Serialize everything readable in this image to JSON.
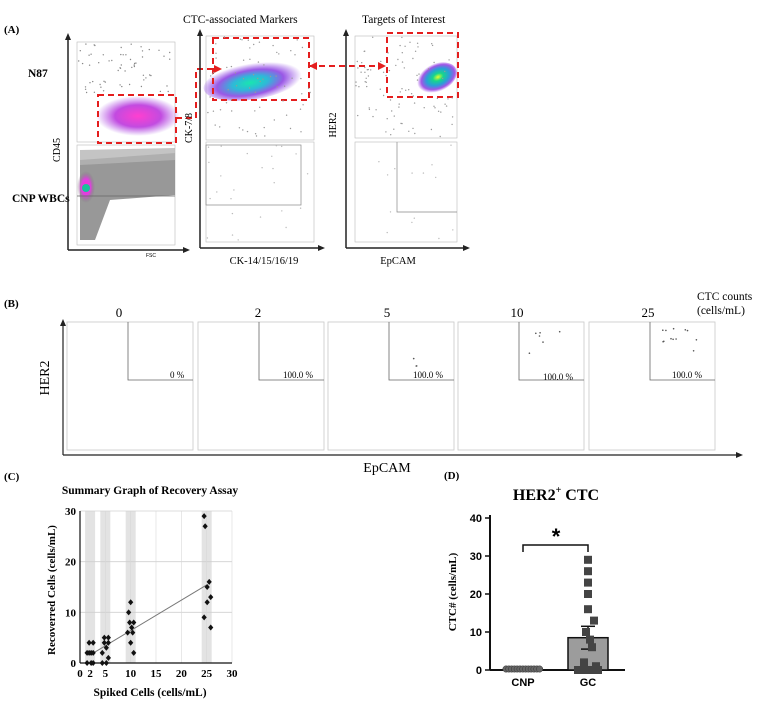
{
  "panel_a": {
    "label": "(A)",
    "header_markers": "CTC-associated Markers",
    "header_targets": "Targets of Interest",
    "row_label_top": "N87",
    "row_label_bottom": "CNP WBCs",
    "y_axis_1": "CD45",
    "x_axis_1": "FSC",
    "y_axis_2": "CK-7/8",
    "x_axis_2": "CK-14/15/16/19",
    "y_axis_3": "HER2",
    "x_axis_3": "EpCAM"
  },
  "panel_b": {
    "label": "(B)",
    "plots": [
      {
        "count": "0",
        "percent": "0 %"
      },
      {
        "count": "2",
        "percent": "100.0 %"
      },
      {
        "count": "5",
        "percent": "100.0 %"
      },
      {
        "count": "10",
        "percent": "100.0 %"
      },
      {
        "count": "25",
        "percent": "100.0 %"
      }
    ],
    "ctc_counts_label": "CTC counts",
    "units_label": "(cells/mL)",
    "y_axis": "HER2",
    "x_axis": "EpCAM"
  },
  "panel_c": {
    "label": "(C)",
    "chart_data": {
      "type": "scatter",
      "title": "Summary Graph of Recovery Assay",
      "xlabel": "Spiked Cells (cells/mL)",
      "ylabel": "Recoverred Cells (cells/mL)",
      "xlim": [
        0,
        30
      ],
      "ylim": [
        0,
        30
      ],
      "x_ticks": [
        "0",
        "2",
        "5",
        "10",
        "15",
        "20",
        "25",
        "30"
      ],
      "y_ticks": [
        "0",
        "10",
        "20",
        "30"
      ],
      "grid": true,
      "fit_line": {
        "x": [
          2,
          25
        ],
        "y": [
          1.6,
          15.4
        ]
      },
      "series": [
        {
          "name": "spiked 2",
          "x": [
            1.4,
            1.4,
            1.8,
            1.8,
            2.2,
            2.2,
            2.6,
            2.6,
            2.6
          ],
          "y": [
            0,
            2,
            2,
            4,
            0,
            2,
            0,
            2,
            4
          ]
        },
        {
          "name": "spiked 5",
          "x": [
            4.4,
            4.4,
            4.8,
            4.8,
            5.2,
            5.2,
            5.6,
            5.6,
            5.6
          ],
          "y": [
            0,
            2,
            4,
            5,
            0,
            3,
            1,
            4,
            5
          ]
        },
        {
          "name": "spiked 10",
          "x": [
            9.4,
            9.6,
            9.8,
            10.0,
            10.2,
            10.4,
            10.6,
            10.0,
            10.6
          ],
          "y": [
            6,
            10,
            8,
            4,
            7,
            6,
            2,
            12,
            8
          ]
        },
        {
          "name": "spiked 25",
          "x": [
            24.5,
            24.7,
            25.5,
            25.8,
            25.1,
            25.1,
            24.5,
            25.8
          ],
          "y": [
            29,
            27,
            16,
            13,
            15,
            12,
            9,
            7
          ]
        }
      ]
    }
  },
  "panel_d": {
    "label": "(D)",
    "title_main": "HER2",
    "title_sup": "+",
    "title_rest": " CTC",
    "significance": "*",
    "chart_data": {
      "type": "bar",
      "categories": [
        "CNP",
        "GC"
      ],
      "values": [
        0,
        8.5
      ],
      "errors": [
        0,
        3.0
      ],
      "ylabel": "CTC# (cells/mL)",
      "ylim": [
        0,
        40
      ],
      "y_ticks": [
        "0",
        "10",
        "20",
        "30",
        "40"
      ],
      "points_cnp": [
        0,
        0,
        0,
        0,
        0,
        0,
        0,
        0,
        0,
        0,
        0,
        0,
        0
      ],
      "points_gc": [
        0,
        0,
        0,
        0,
        0,
        0,
        1,
        2,
        6,
        8,
        10,
        13,
        16,
        20,
        23,
        26,
        29
      ]
    }
  },
  "colors": {
    "gate": "#e41e1e",
    "gray_density": "#9a9a9a",
    "bar_fill": "#9c9c9c",
    "grid_band": "#e3e3e3"
  }
}
